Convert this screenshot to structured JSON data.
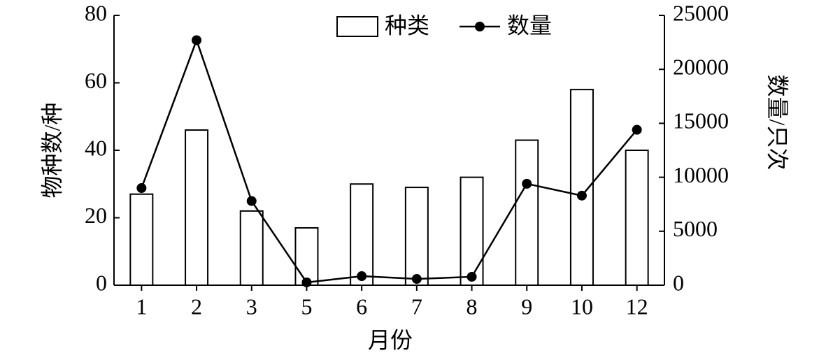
{
  "chart_data": {
    "type": "bar",
    "x_label": "月份",
    "y_label": "物种数/种",
    "y2_label": "数量/只次",
    "categories": [
      "1",
      "2",
      "3",
      "5",
      "6",
      "7",
      "8",
      "9",
      "10",
      "12"
    ],
    "series": [
      {
        "name": "种类",
        "type": "bar",
        "color": "#ffffff",
        "values": [
          27,
          46,
          22,
          17,
          30,
          29,
          32,
          43,
          58,
          40
        ]
      },
      {
        "name": "数量",
        "type": "line",
        "axis": "y2",
        "color": "#000000",
        "values": [
          9000,
          22700,
          7800,
          260,
          840,
          580,
          780,
          9400,
          8300,
          14400
        ]
      }
    ],
    "ylim": [
      0,
      80
    ],
    "yticks": [
      0,
      20,
      40,
      60,
      80
    ],
    "y2lim": [
      0,
      25000
    ],
    "y2ticks": [
      0,
      5000,
      10000,
      15000,
      20000,
      25000
    ],
    "legend": "top"
  }
}
